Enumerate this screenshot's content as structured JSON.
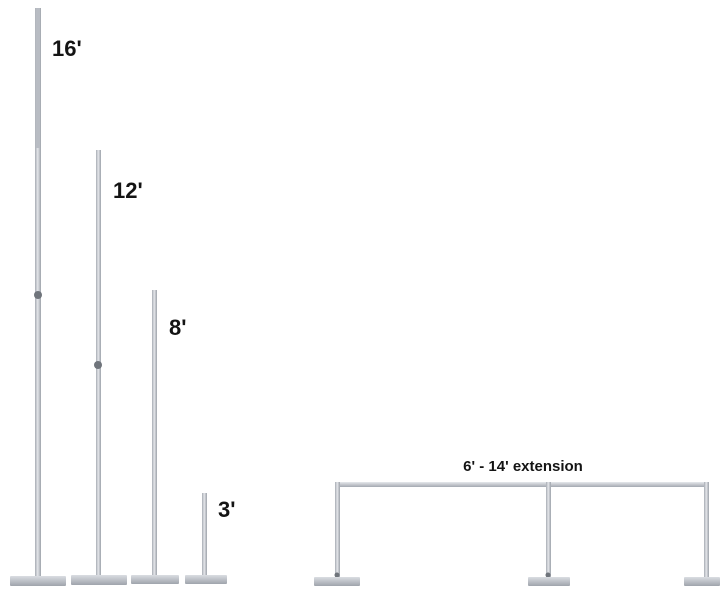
{
  "poles": [
    {
      "height_label": "16'"
    },
    {
      "height_label": "12'"
    },
    {
      "height_label": "8'"
    },
    {
      "height_label": "3'"
    }
  ],
  "crossbar": {
    "label": "6' - 14' extension"
  },
  "colors": {
    "pole": "#c9ccd2",
    "pole_edge": "#9ea3ab",
    "base": "#b9bdc4",
    "base_top": "#d6d9de",
    "knob": "#6f747b",
    "text": "#141414"
  }
}
